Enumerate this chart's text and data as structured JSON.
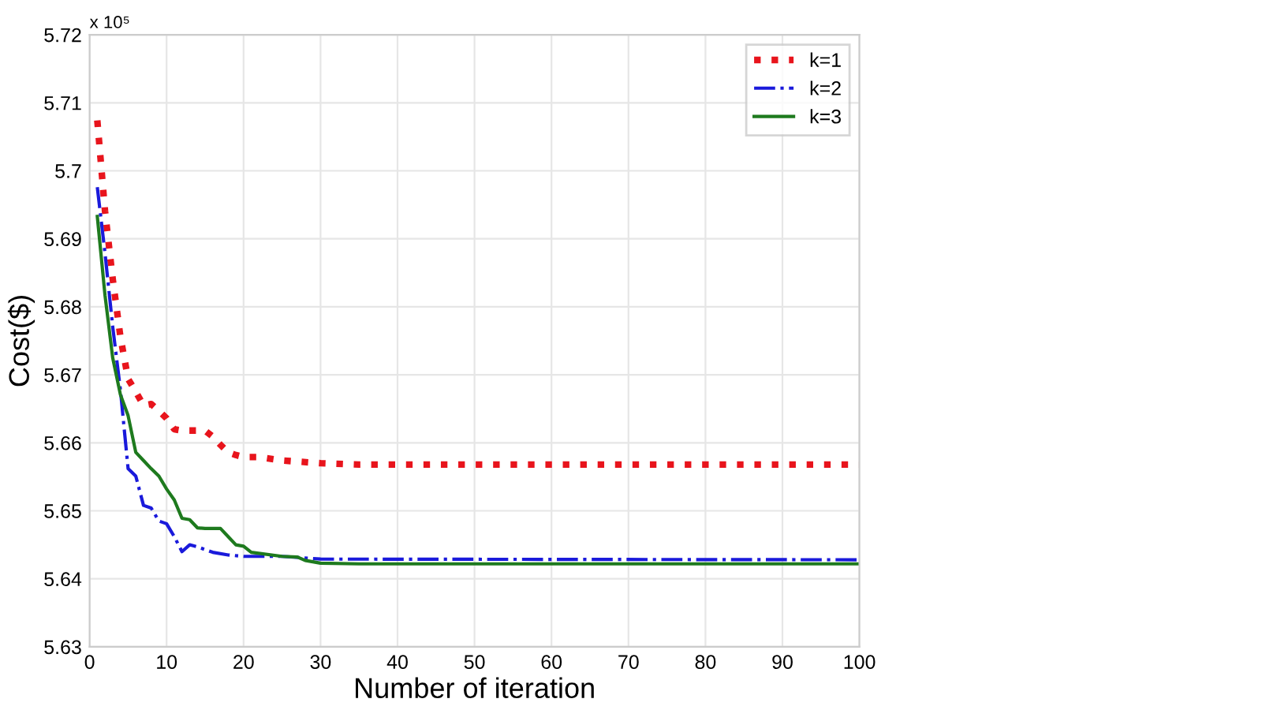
{
  "chart_data": {
    "type": "line",
    "xlabel": "Number of iteration",
    "ylabel": "Cost($)",
    "annotations": [
      "x 10⁵"
    ],
    "xlim": [
      0,
      100
    ],
    "xticks": [
      0,
      10,
      20,
      30,
      40,
      50,
      60,
      70,
      80,
      90,
      100
    ],
    "ylim": [
      5.63,
      5.72
    ],
    "yticks": [
      5.63,
      5.64,
      5.65,
      5.66,
      5.67,
      5.68,
      5.69,
      5.7,
      5.71,
      5.72
    ],
    "grid": true,
    "legend": "top right",
    "marker": "none",
    "series": [
      {
        "name": "k=1",
        "color": "#e8141c",
        "line_style": "dotted",
        "x": [
          1,
          2,
          3,
          4,
          5,
          6,
          7,
          8,
          9,
          10,
          11,
          12,
          15,
          16,
          17,
          18,
          19,
          20,
          22,
          25,
          30,
          35,
          100
        ],
        "values": [
          5.7074,
          5.6941,
          5.6841,
          5.6756,
          5.6694,
          5.6675,
          5.6655,
          5.6657,
          5.6647,
          5.6636,
          5.662,
          5.6618,
          5.6618,
          5.6609,
          5.6597,
          5.6586,
          5.6582,
          5.6579,
          5.6579,
          5.6574,
          5.657,
          5.6568,
          5.6568
        ]
      },
      {
        "name": "k=2",
        "color": "#1a1adb",
        "line_style": "dashdot",
        "x": [
          1,
          2,
          3,
          4,
          5,
          6,
          7,
          8,
          9,
          10,
          11,
          12,
          13,
          14,
          16,
          18,
          20,
          25,
          30,
          100
        ],
        "values": [
          5.6976,
          5.6879,
          5.6771,
          5.6678,
          5.6562,
          5.6551,
          5.6508,
          5.6504,
          5.6485,
          5.6481,
          5.6462,
          5.644,
          5.645,
          5.6447,
          5.6439,
          5.6435,
          5.6433,
          5.6433,
          5.6429,
          5.6428
        ]
      },
      {
        "name": "k=3",
        "color": "#1e7a1e",
        "line_style": "solid",
        "x": [
          1,
          2,
          3,
          4,
          5,
          6,
          7,
          8,
          9,
          10,
          11,
          12,
          13,
          14,
          15,
          17,
          18,
          19,
          20,
          21,
          25,
          27,
          28,
          30,
          35,
          100
        ],
        "values": [
          5.6933,
          5.6817,
          5.6725,
          5.6671,
          5.664,
          5.6586,
          5.6574,
          5.6562,
          5.6551,
          5.6532,
          5.6516,
          5.6489,
          5.6487,
          5.6475,
          5.6474,
          5.6474,
          5.6462,
          5.645,
          5.6448,
          5.6439,
          5.6433,
          5.6432,
          5.6427,
          5.6423,
          5.6422,
          5.6422
        ]
      }
    ]
  }
}
